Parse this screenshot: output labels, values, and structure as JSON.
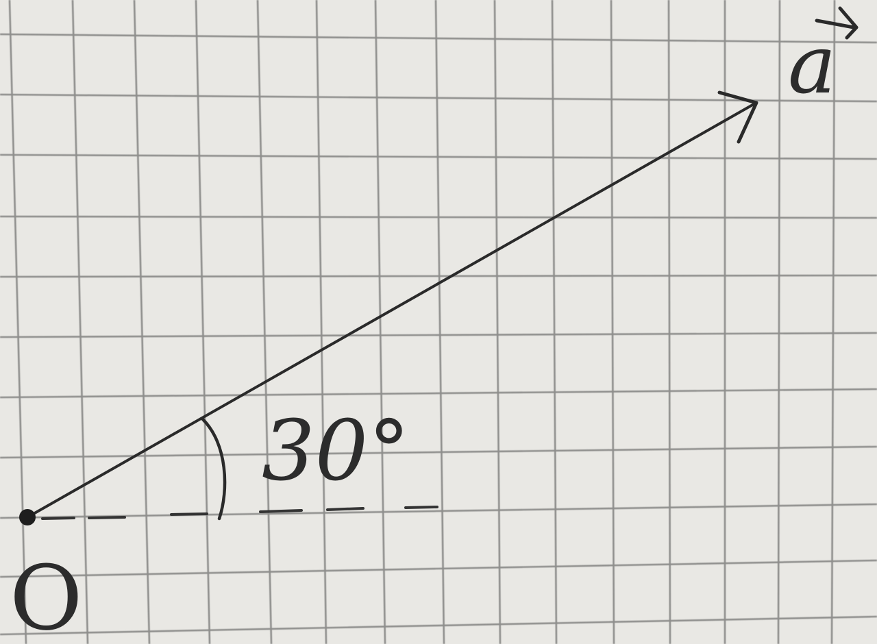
{
  "diagram": {
    "vector": {
      "name": "a",
      "arrow_mark": "→"
    },
    "angle": {
      "label": "30°",
      "degrees": 30
    },
    "origin": {
      "label": "O"
    },
    "colors": {
      "paper": "#e9e8e4",
      "grid": "#8e8e8c",
      "ink": "#2c2c2c"
    }
  }
}
